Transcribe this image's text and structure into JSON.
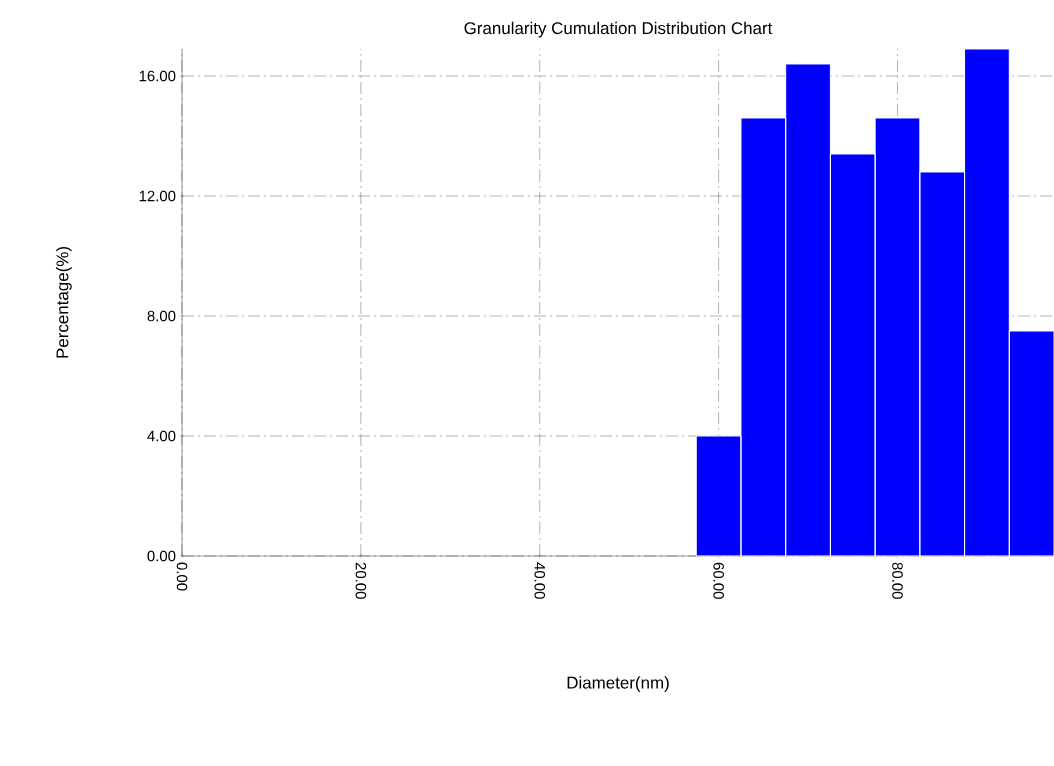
{
  "chart_data": {
    "type": "histogram",
    "title": "Granularity Cumulation Distribution  Chart",
    "xlabel": "Diameter(nm)",
    "ylabel": "Percentage(%)",
    "bins": [
      57.5,
      62.5,
      67.5,
      72.5,
      77.5,
      82.5,
      87.5,
      92.5,
      97.5
    ],
    "values": [
      4.0,
      14.6,
      16.4,
      13.4,
      14.6,
      12.8,
      16.9,
      7.5
    ],
    "color": "#0000ff",
    "xlim": [
      0,
      97.5
    ],
    "ylim": [
      0,
      16.9
    ],
    "xticks": [
      {
        "value": 0,
        "label": "0.00"
      },
      {
        "value": 20,
        "label": "20.00"
      },
      {
        "value": 40,
        "label": "40.00"
      },
      {
        "value": 60,
        "label": "60.00"
      },
      {
        "value": 80,
        "label": "80.00"
      }
    ],
    "yticks": [
      {
        "value": 0,
        "label": "0.00"
      },
      {
        "value": 4,
        "label": "4.00"
      },
      {
        "value": 8,
        "label": "8.00"
      },
      {
        "value": 12,
        "label": "12.00"
      },
      {
        "value": 16,
        "label": "16.00"
      }
    ],
    "grid": true
  }
}
